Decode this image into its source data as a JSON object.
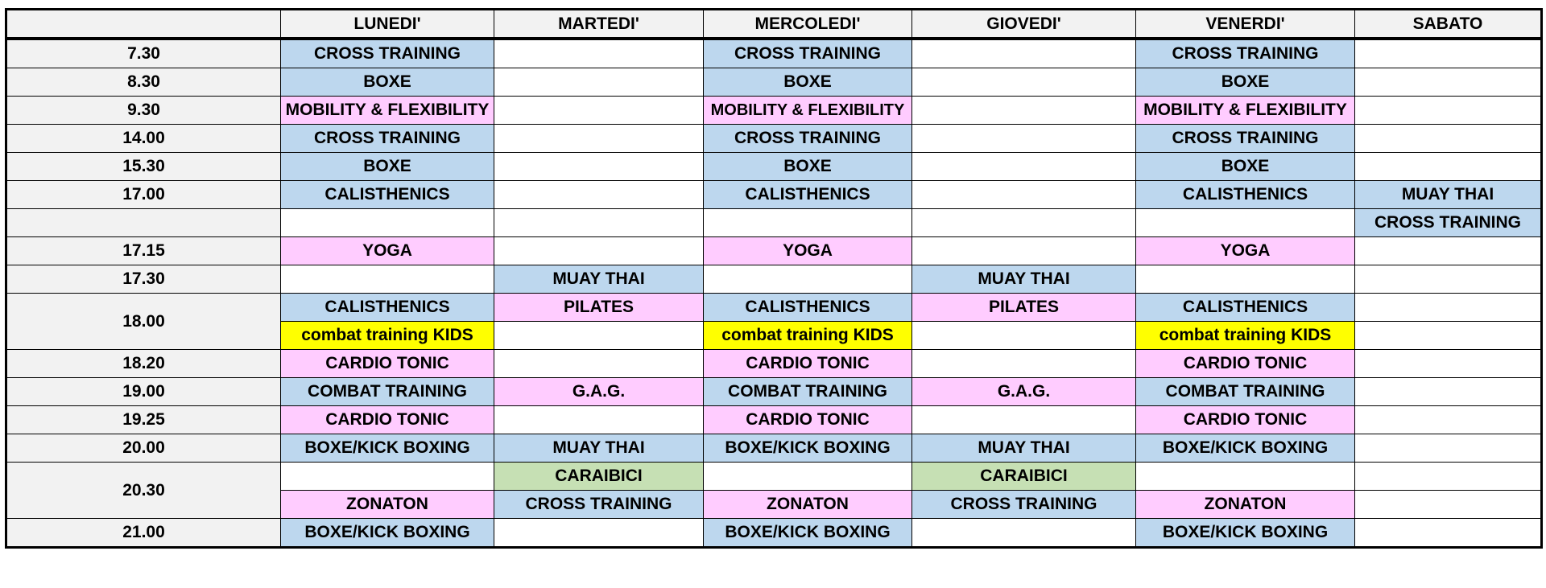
{
  "header": {
    "days": [
      "LUNEDI'",
      "MARTEDI'",
      "MERCOLEDI'",
      "GIOVEDI'",
      "VENERDI'",
      "SABATO"
    ]
  },
  "rows": [
    {
      "time": "7.30",
      "lines": [
        [
          {
            "text": "CROSS TRAINING",
            "color": "#bdd7ee"
          },
          null,
          {
            "text": "CROSS TRAINING",
            "color": "#bdd7ee"
          },
          null,
          {
            "text": "CROSS TRAINING",
            "color": "#bdd7ee"
          },
          null
        ]
      ]
    },
    {
      "time": "8.30",
      "lines": [
        [
          {
            "text": "BOXE",
            "color": "#bdd7ee"
          },
          null,
          {
            "text": "BOXE",
            "color": "#bdd7ee"
          },
          null,
          {
            "text": "BOXE",
            "color": "#bdd7ee"
          },
          null
        ]
      ]
    },
    {
      "time": "9.30",
      "lines": [
        [
          {
            "text": "MOBILITY & FLEXIBILITY",
            "color": "#ffccff"
          },
          null,
          {
            "text": "MOBILITY & FLEXIBILITY",
            "color": "#ffccff"
          },
          null,
          {
            "text": "MOBILITY & FLEXIBILITY",
            "color": "#ffccff"
          },
          null
        ]
      ]
    },
    {
      "time": "14.00",
      "lines": [
        [
          {
            "text": "CROSS TRAINING",
            "color": "#bdd7ee"
          },
          null,
          {
            "text": "CROSS TRAINING",
            "color": "#bdd7ee"
          },
          null,
          {
            "text": "CROSS TRAINING",
            "color": "#bdd7ee"
          },
          null
        ]
      ]
    },
    {
      "time": "15.30",
      "lines": [
        [
          {
            "text": "BOXE",
            "color": "#bdd7ee"
          },
          null,
          {
            "text": "BOXE",
            "color": "#bdd7ee"
          },
          null,
          {
            "text": "BOXE",
            "color": "#bdd7ee"
          },
          null
        ]
      ]
    },
    {
      "time": "17.00",
      "lines": [
        [
          {
            "text": "CALISTHENICS",
            "color": "#bdd7ee"
          },
          null,
          {
            "text": "CALISTHENICS",
            "color": "#bdd7ee"
          },
          null,
          {
            "text": "CALISTHENICS",
            "color": "#bdd7ee"
          },
          {
            "text": "MUAY THAI",
            "color": "#bdd7ee"
          }
        ]
      ]
    },
    {
      "time": null,
      "lines": [
        [
          null,
          null,
          null,
          null,
          null,
          {
            "text": "CROSS TRAINING",
            "color": "#bdd7ee"
          }
        ]
      ]
    },
    {
      "time": "17.15",
      "lines": [
        [
          {
            "text": "YOGA",
            "color": "#ffccff"
          },
          null,
          {
            "text": "YOGA",
            "color": "#ffccff"
          },
          null,
          {
            "text": "YOGA",
            "color": "#ffccff"
          },
          null
        ]
      ]
    },
    {
      "time": "17.30",
      "lines": [
        [
          null,
          {
            "text": "MUAY THAI",
            "color": "#bdd7ee"
          },
          null,
          {
            "text": "MUAY THAI",
            "color": "#bdd7ee"
          },
          null,
          null
        ]
      ]
    },
    {
      "time": "18.00",
      "lines": [
        [
          {
            "text": "CALISTHENICS",
            "color": "#bdd7ee"
          },
          {
            "text": "PILATES",
            "color": "#ffccff"
          },
          {
            "text": "CALISTHENICS",
            "color": "#bdd7ee"
          },
          {
            "text": "PILATES",
            "color": "#ffccff"
          },
          {
            "text": "CALISTHENICS",
            "color": "#bdd7ee"
          },
          null
        ],
        [
          {
            "text": "combat training KIDS",
            "color": "#ffff00"
          },
          null,
          {
            "text": "combat training KIDS",
            "color": "#ffff00"
          },
          null,
          {
            "text": "combat training KIDS",
            "color": "#ffff00"
          },
          null
        ]
      ]
    },
    {
      "time": "18.20",
      "lines": [
        [
          {
            "text": "CARDIO TONIC",
            "color": "#ffccff"
          },
          null,
          {
            "text": "CARDIO TONIC",
            "color": "#ffccff"
          },
          null,
          {
            "text": "CARDIO TONIC",
            "color": "#ffccff"
          },
          null
        ]
      ]
    },
    {
      "time": "19.00",
      "lines": [
        [
          {
            "text": "COMBAT TRAINING",
            "color": "#bdd7ee"
          },
          {
            "text": "G.A.G.",
            "color": "#ffccff"
          },
          {
            "text": "COMBAT TRAINING",
            "color": "#bdd7ee"
          },
          {
            "text": "G.A.G.",
            "color": "#ffccff"
          },
          {
            "text": "COMBAT TRAINING",
            "color": "#bdd7ee"
          },
          null
        ]
      ]
    },
    {
      "time": "19.25",
      "lines": [
        [
          {
            "text": "CARDIO TONIC",
            "color": "#ffccff"
          },
          null,
          {
            "text": "CARDIO TONIC",
            "color": "#ffccff"
          },
          null,
          {
            "text": "CARDIO TONIC",
            "color": "#ffccff"
          },
          null
        ]
      ]
    },
    {
      "time": "20.00",
      "lines": [
        [
          {
            "text": "BOXE/KICK BOXING",
            "color": "#bdd7ee"
          },
          {
            "text": "MUAY THAI",
            "color": "#bdd7ee"
          },
          {
            "text": "BOXE/KICK BOXING",
            "color": "#bdd7ee"
          },
          {
            "text": "MUAY THAI",
            "color": "#bdd7ee"
          },
          {
            "text": "BOXE/KICK BOXING",
            "color": "#bdd7ee"
          },
          null
        ]
      ]
    },
    {
      "time": "20.30",
      "lines": [
        [
          null,
          {
            "text": "CARAIBICI",
            "color": "#c6e0b4"
          },
          null,
          {
            "text": "CARAIBICI",
            "color": "#c6e0b4"
          },
          null,
          null
        ],
        [
          {
            "text": "ZONATON",
            "color": "#ffccff"
          },
          {
            "text": "CROSS TRAINING",
            "color": "#bdd7ee"
          },
          {
            "text": "ZONATON",
            "color": "#ffccff"
          },
          {
            "text": "CROSS TRAINING",
            "color": "#bdd7ee"
          },
          {
            "text": "ZONATON",
            "color": "#ffccff"
          },
          null
        ]
      ]
    },
    {
      "time": "21.00",
      "lines": [
        [
          {
            "text": "BOXE/KICK BOXING",
            "color": "#bdd7ee"
          },
          null,
          {
            "text": "BOXE/KICK BOXING",
            "color": "#bdd7ee"
          },
          null,
          {
            "text": "BOXE/KICK BOXING",
            "color": "#bdd7ee"
          },
          null
        ]
      ]
    }
  ]
}
